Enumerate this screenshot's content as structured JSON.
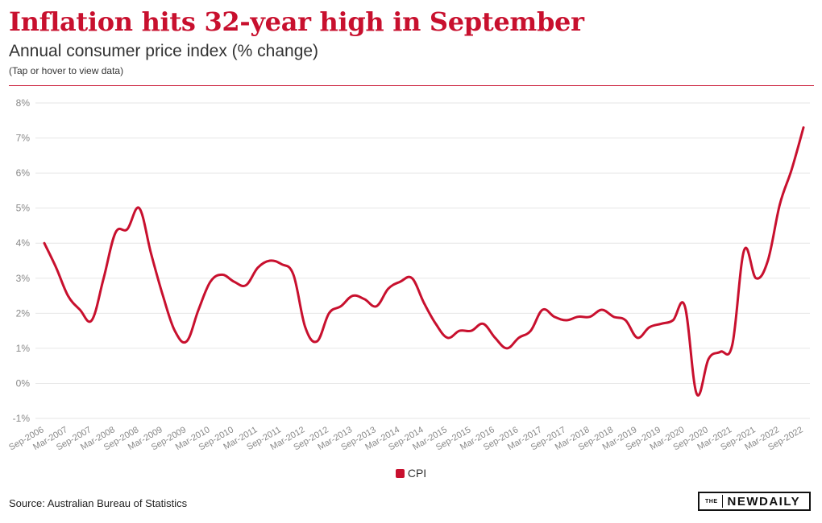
{
  "header": {
    "title": "Inflation hits 32-year high in September",
    "subtitle": "Annual consumer price index (% change)",
    "hint": "(Tap or hover to view data)"
  },
  "footer": {
    "source": "Source: Australian Bureau of Statistics",
    "logo_the": "THE",
    "logo_main": "NEWDAILY"
  },
  "colors": {
    "accent": "#c8102e",
    "grid": "#e6e6e6",
    "axis_text": "#888888"
  },
  "chart_data": {
    "type": "line",
    "title": "Inflation hits 32-year high in September",
    "subtitle": "Annual consumer price index (% change)",
    "ylim": [
      -1,
      8
    ],
    "yticks": [
      -1,
      0,
      1,
      2,
      3,
      4,
      5,
      6,
      7,
      8
    ],
    "ytick_labels": [
      "-1%",
      "0%",
      "1%",
      "2%",
      "3%",
      "4%",
      "5%",
      "6%",
      "7%",
      "8%"
    ],
    "grid": true,
    "legend": "bottom-center",
    "categories": [
      "Sep-2006",
      "Dec-2006",
      "Mar-2007",
      "Jun-2007",
      "Sep-2007",
      "Dec-2007",
      "Mar-2008",
      "Jun-2008",
      "Sep-2008",
      "Dec-2008",
      "Mar-2009",
      "Jun-2009",
      "Sep-2009",
      "Dec-2009",
      "Mar-2010",
      "Jun-2010",
      "Sep-2010",
      "Dec-2010",
      "Mar-2011",
      "Jun-2011",
      "Sep-2011",
      "Dec-2011",
      "Mar-2012",
      "Jun-2012",
      "Sep-2012",
      "Dec-2012",
      "Mar-2013",
      "Jun-2013",
      "Sep-2013",
      "Dec-2013",
      "Mar-2014",
      "Jun-2014",
      "Sep-2014",
      "Dec-2014",
      "Mar-2015",
      "Jun-2015",
      "Sep-2015",
      "Dec-2015",
      "Mar-2016",
      "Jun-2016",
      "Sep-2016",
      "Dec-2016",
      "Mar-2017",
      "Jun-2017",
      "Sep-2017",
      "Dec-2017",
      "Mar-2018",
      "Jun-2018",
      "Sep-2018",
      "Dec-2018",
      "Mar-2019",
      "Jun-2019",
      "Sep-2019",
      "Dec-2019",
      "Mar-2020",
      "Jun-2020",
      "Sep-2020",
      "Dec-2020",
      "Mar-2021",
      "Jun-2021",
      "Sep-2021",
      "Dec-2021",
      "Mar-2022",
      "Jun-2022",
      "Sep-2022"
    ],
    "xtick_labels": [
      "Sep-2006",
      "Mar-2007",
      "Sep-2007",
      "Mar-2008",
      "Sep-2008",
      "Mar-2009",
      "Sep-2009",
      "Mar-2010",
      "Sep-2010",
      "Mar-2011",
      "Sep-2011",
      "Mar-2012",
      "Sep-2012",
      "Mar-2013",
      "Sep-2013",
      "Mar-2014",
      "Sep-2014",
      "Mar-2015",
      "Sep-2015",
      "Mar-2016",
      "Sep-2016",
      "Mar-2017",
      "Sep-2017",
      "Mar-2018",
      "Sep-2018",
      "Mar-2019",
      "Sep-2019",
      "Mar-2020",
      "Sep-2020",
      "Mar-2021",
      "Sep-2021",
      "Mar-2022",
      "Sep-2022"
    ],
    "series": [
      {
        "name": "CPI",
        "color": "#c8102e",
        "values": [
          4.0,
          3.3,
          2.5,
          2.1,
          1.8,
          3.0,
          4.3,
          4.4,
          5.0,
          3.7,
          2.5,
          1.5,
          1.2,
          2.1,
          2.9,
          3.1,
          2.9,
          2.8,
          3.3,
          3.5,
          3.4,
          3.1,
          1.6,
          1.2,
          2.0,
          2.2,
          2.5,
          2.4,
          2.2,
          2.7,
          2.9,
          3.0,
          2.3,
          1.7,
          1.3,
          1.5,
          1.5,
          1.7,
          1.3,
          1.0,
          1.3,
          1.5,
          2.1,
          1.9,
          1.8,
          1.9,
          1.9,
          2.1,
          1.9,
          1.8,
          1.3,
          1.6,
          1.7,
          1.8,
          2.2,
          -0.3,
          0.7,
          0.9,
          1.1,
          3.8,
          3.0,
          3.5,
          5.1,
          6.1,
          7.3
        ]
      }
    ]
  }
}
